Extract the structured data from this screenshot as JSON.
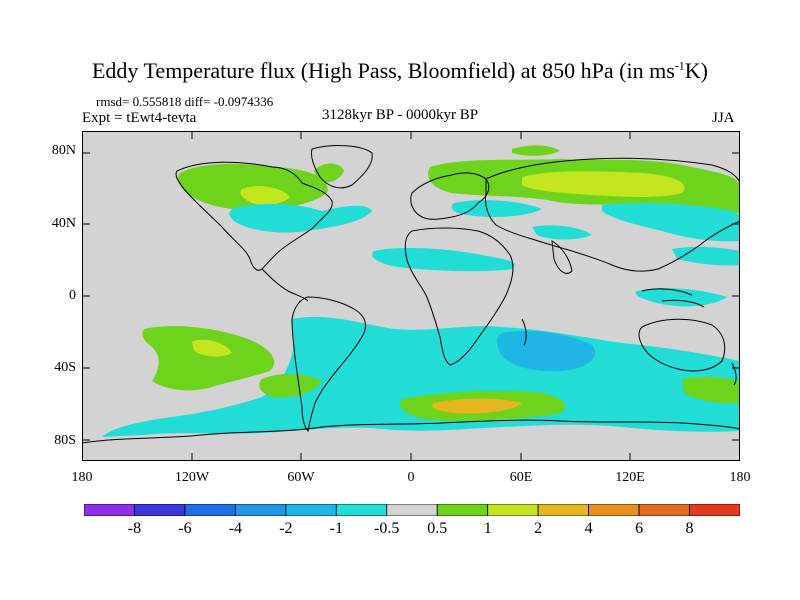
{
  "title": {
    "prefix": "Eddy Temperature flux (High Pass, Bloomfield) at 850 hPa (in ms",
    "superscript": "-1",
    "suffix": "K)"
  },
  "stats": "rmsd= 0.555818 diff= -0.0974336",
  "experiment": "Expt = tEwt4-tevta",
  "period": "3128kyr BP - 0000kyr BP",
  "season": "JJA",
  "map": {
    "background_color": "#d3d3d3",
    "coastline_color": "#000000",
    "lat_labels": [
      "80N",
      "40N",
      "0",
      "40S",
      "80S"
    ],
    "lon_labels": [
      "180",
      "120W",
      "60W",
      "0",
      "60E",
      "120E",
      "180"
    ]
  },
  "colorbar": {
    "labels": [
      "-8",
      "-6",
      "-4",
      "-2",
      "-1",
      "-0.5",
      "0.5",
      "1",
      "2",
      "4",
      "6",
      "8"
    ],
    "colors": [
      "#8e2ee6",
      "#3a36e0",
      "#1e6fe8",
      "#2196e6",
      "#1fb6e6",
      "#22dcd6",
      "#d3d3d3",
      "#6dd31c",
      "#c4e61e",
      "#e6b61e",
      "#e6901e",
      "#e66a1e",
      "#e63a1e"
    ]
  }
}
